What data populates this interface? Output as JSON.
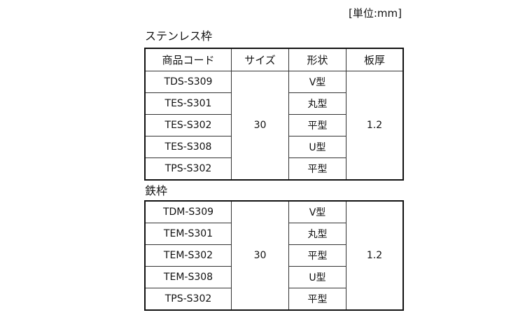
{
  "unit_label": "[単位:mm]",
  "headers": [
    "商品コード",
    "サイズ",
    "形状",
    "板厚"
  ],
  "sections": [
    {
      "title": "ステンレス枠",
      "show_header": true,
      "size": "30",
      "thickness": "1.2",
      "rows": [
        {
          "code": "TDS-S309",
          "shape": "V型"
        },
        {
          "code": "TES-S301",
          "shape": "丸型"
        },
        {
          "code": "TES-S302",
          "shape": "平型"
        },
        {
          "code": "TES-S308",
          "shape": "U型"
        },
        {
          "code": "TPS-S302",
          "shape": "平型"
        }
      ]
    },
    {
      "title": "鉄枠",
      "show_header": false,
      "size": "30",
      "thickness": "1.2",
      "rows": [
        {
          "code": "TDM-S309",
          "shape": "V型"
        },
        {
          "code": "TEM-S301",
          "shape": "丸型"
        },
        {
          "code": "TEM-S302",
          "shape": "平型"
        },
        {
          "code": "TEM-S308",
          "shape": "U型"
        },
        {
          "code": "TPS-S302",
          "shape": "平型"
        }
      ]
    }
  ]
}
